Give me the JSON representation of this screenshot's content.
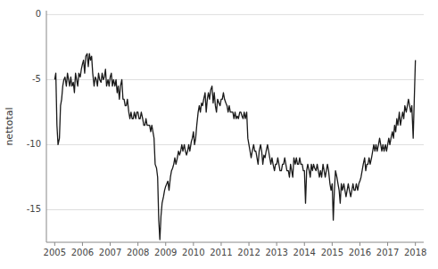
{
  "chart_data": {
    "type": "line",
    "ylabel": "nettotal",
    "color": "#1a1a1a",
    "grid": true,
    "xlim": [
      2004.7,
      2018.3
    ],
    "ylim": [
      -17.5,
      0.3
    ],
    "xticks": [
      2005,
      2006,
      2007,
      2008,
      2009,
      2010,
      2011,
      2012,
      2013,
      2014,
      2015,
      2016,
      2017,
      2018
    ],
    "yticks": [
      0,
      -5,
      -10,
      -15
    ],
    "x": [
      2005.0,
      2005.04,
      2005.08,
      2005.12,
      2005.17,
      2005.21,
      2005.25,
      2005.29,
      2005.33,
      2005.37,
      2005.42,
      2005.46,
      2005.5,
      2005.54,
      2005.58,
      2005.62,
      2005.67,
      2005.71,
      2005.75,
      2005.79,
      2005.83,
      2005.87,
      2005.92,
      2005.96,
      2006.0,
      2006.04,
      2006.08,
      2006.12,
      2006.17,
      2006.21,
      2006.25,
      2006.29,
      2006.33,
      2006.37,
      2006.42,
      2006.46,
      2006.5,
      2006.54,
      2006.58,
      2006.62,
      2006.67,
      2006.71,
      2006.75,
      2006.79,
      2006.83,
      2006.87,
      2006.92,
      2006.96,
      2007.0,
      2007.04,
      2007.08,
      2007.12,
      2007.17,
      2007.21,
      2007.25,
      2007.29,
      2007.33,
      2007.37,
      2007.42,
      2007.46,
      2007.5,
      2007.54,
      2007.58,
      2007.62,
      2007.67,
      2007.71,
      2007.75,
      2007.79,
      2007.83,
      2007.87,
      2007.92,
      2007.96,
      2008.0,
      2008.04,
      2008.08,
      2008.12,
      2008.17,
      2008.21,
      2008.25,
      2008.29,
      2008.33,
      2008.37,
      2008.42,
      2008.46,
      2008.5,
      2008.54,
      2008.58,
      2008.62,
      2008.67,
      2008.71,
      2008.75,
      2008.79,
      2008.83,
      2008.87,
      2008.92,
      2008.96,
      2009.0,
      2009.04,
      2009.08,
      2009.12,
      2009.17,
      2009.21,
      2009.25,
      2009.29,
      2009.33,
      2009.37,
      2009.42,
      2009.46,
      2009.5,
      2009.54,
      2009.58,
      2009.62,
      2009.67,
      2009.71,
      2009.75,
      2009.79,
      2009.83,
      2009.87,
      2009.92,
      2009.96,
      2010.0,
      2010.04,
      2010.08,
      2010.12,
      2010.17,
      2010.21,
      2010.25,
      2010.29,
      2010.33,
      2010.37,
      2010.42,
      2010.46,
      2010.5,
      2010.54,
      2010.58,
      2010.62,
      2010.67,
      2010.71,
      2010.75,
      2010.79,
      2010.83,
      2010.87,
      2010.92,
      2010.96,
      2011.0,
      2011.04,
      2011.08,
      2011.12,
      2011.17,
      2011.21,
      2011.25,
      2011.29,
      2011.33,
      2011.37,
      2011.42,
      2011.46,
      2011.5,
      2011.54,
      2011.58,
      2011.62,
      2011.67,
      2011.71,
      2011.75,
      2011.79,
      2011.83,
      2011.87,
      2011.92,
      2011.96,
      2012.0,
      2012.04,
      2012.08,
      2012.12,
      2012.17,
      2012.21,
      2012.25,
      2012.29,
      2012.33,
      2012.37,
      2012.42,
      2012.46,
      2012.5,
      2012.54,
      2012.58,
      2012.62,
      2012.67,
      2012.71,
      2012.75,
      2012.79,
      2012.83,
      2012.87,
      2012.92,
      2012.96,
      2013.0,
      2013.04,
      2013.08,
      2013.12,
      2013.17,
      2013.21,
      2013.25,
      2013.29,
      2013.33,
      2013.37,
      2013.42,
      2013.46,
      2013.5,
      2013.54,
      2013.58,
      2013.62,
      2013.67,
      2013.71,
      2013.75,
      2013.79,
      2013.83,
      2013.87,
      2013.92,
      2013.96,
      2014.0,
      2014.04,
      2014.08,
      2014.12,
      2014.17,
      2014.21,
      2014.25,
      2014.29,
      2014.33,
      2014.37,
      2014.42,
      2014.46,
      2014.5,
      2014.54,
      2014.58,
      2014.62,
      2014.67,
      2014.71,
      2014.75,
      2014.79,
      2014.83,
      2014.87,
      2014.92,
      2014.96,
      2015.0,
      2015.04,
      2015.08,
      2015.12,
      2015.17,
      2015.21,
      2015.25,
      2015.29,
      2015.33,
      2015.37,
      2015.42,
      2015.46,
      2015.5,
      2015.54,
      2015.58,
      2015.62,
      2015.67,
      2015.71,
      2015.75,
      2015.79,
      2015.83,
      2015.87,
      2015.92,
      2015.96,
      2016.0,
      2016.04,
      2016.08,
      2016.12,
      2016.17,
      2016.21,
      2016.25,
      2016.29,
      2016.33,
      2016.37,
      2016.42,
      2016.46,
      2016.5,
      2016.54,
      2016.58,
      2016.62,
      2016.67,
      2016.71,
      2016.75,
      2016.79,
      2016.83,
      2016.87,
      2016.92,
      2016.96,
      2017.0,
      2017.04,
      2017.08,
      2017.12,
      2017.17,
      2017.21,
      2017.25,
      2017.29,
      2017.33,
      2017.37,
      2017.42,
      2017.46,
      2017.5,
      2017.54,
      2017.58,
      2017.62,
      2017.67,
      2017.71,
      2017.75,
      2017.79,
      2017.83,
      2017.87,
      2017.92,
      2017.96,
      2018.0
    ],
    "values": [
      -5.0,
      -4.5,
      -8.5,
      -10.0,
      -9.5,
      -7.0,
      -6.5,
      -5.5,
      -5.0,
      -4.8,
      -5.5,
      -4.5,
      -5.0,
      -5.5,
      -4.8,
      -5.5,
      -5.2,
      -6.0,
      -4.5,
      -5.0,
      -5.5,
      -4.5,
      -4.8,
      -4.2,
      -3.8,
      -3.5,
      -4.5,
      -3.2,
      -3.0,
      -4.0,
      -3.0,
      -3.5,
      -3.2,
      -4.5,
      -5.5,
      -4.8,
      -5.0,
      -5.5,
      -4.5,
      -5.0,
      -5.2,
      -4.5,
      -5.0,
      -4.8,
      -4.2,
      -5.5,
      -5.0,
      -5.5,
      -4.8,
      -4.5,
      -5.5,
      -5.0,
      -5.5,
      -5.0,
      -6.0,
      -5.5,
      -6.5,
      -5.5,
      -5.0,
      -6.5,
      -6.5,
      -7.0,
      -7.0,
      -6.5,
      -7.5,
      -8.0,
      -7.5,
      -8.0,
      -8.0,
      -7.5,
      -8.0,
      -7.5,
      -7.5,
      -8.0,
      -8.0,
      -7.5,
      -8.0,
      -8.5,
      -8.5,
      -8.0,
      -8.5,
      -8.5,
      -8.5,
      -9.0,
      -8.5,
      -9.0,
      -9.5,
      -11.5,
      -11.8,
      -12.5,
      -15.8,
      -17.3,
      -15.5,
      -14.5,
      -14.0,
      -13.5,
      -13.2,
      -13.0,
      -12.8,
      -13.5,
      -12.5,
      -12.0,
      -11.8,
      -11.5,
      -11.0,
      -11.5,
      -11.0,
      -10.5,
      -10.8,
      -10.5,
      -10.0,
      -10.5,
      -10.0,
      -10.5,
      -10.8,
      -10.5,
      -10.0,
      -10.5,
      -9.8,
      -9.5,
      -9.0,
      -10.0,
      -9.5,
      -8.5,
      -7.5,
      -7.0,
      -7.5,
      -6.8,
      -7.0,
      -6.5,
      -6.0,
      -7.5,
      -6.5,
      -6.0,
      -6.5,
      -5.8,
      -5.5,
      -6.8,
      -6.0,
      -7.0,
      -7.5,
      -6.5,
      -6.8,
      -7.0,
      -6.5,
      -6.5,
      -6.0,
      -6.5,
      -6.8,
      -7.0,
      -7.5,
      -7.0,
      -7.5,
      -7.5,
      -7.5,
      -8.0,
      -7.5,
      -8.0,
      -7.8,
      -8.0,
      -7.5,
      -7.5,
      -7.8,
      -8.0,
      -7.5,
      -8.0,
      -7.5,
      -9.5,
      -10.0,
      -10.5,
      -11.0,
      -10.5,
      -10.0,
      -10.5,
      -10.5,
      -11.0,
      -11.5,
      -10.5,
      -10.0,
      -10.5,
      -11.5,
      -10.8,
      -11.0,
      -10.5,
      -10.0,
      -10.5,
      -11.0,
      -11.5,
      -11.0,
      -11.5,
      -12.0,
      -11.5,
      -11.5,
      -11.0,
      -11.5,
      -12.0,
      -12.0,
      -11.5,
      -11.5,
      -11.0,
      -11.5,
      -12.0,
      -12.0,
      -12.5,
      -11.5,
      -12.0,
      -12.5,
      -11.0,
      -11.5,
      -11.0,
      -11.5,
      -11.5,
      -11.0,
      -11.5,
      -11.5,
      -12.0,
      -12.0,
      -14.5,
      -12.0,
      -11.5,
      -12.0,
      -12.5,
      -11.5,
      -12.0,
      -11.5,
      -11.8,
      -12.0,
      -11.5,
      -12.0,
      -12.5,
      -12.0,
      -12.5,
      -11.5,
      -12.0,
      -12.5,
      -12.0,
      -11.5,
      -12.0,
      -13.0,
      -13.5,
      -13.0,
      -15.8,
      -13.5,
      -12.0,
      -12.5,
      -13.0,
      -13.5,
      -14.5,
      -13.0,
      -13.5,
      -13.0,
      -13.5,
      -14.0,
      -13.5,
      -13.0,
      -13.5,
      -14.0,
      -13.5,
      -13.0,
      -13.5,
      -13.5,
      -13.0,
      -13.5,
      -13.0,
      -12.8,
      -12.5,
      -12.0,
      -11.5,
      -11.0,
      -12.0,
      -11.5,
      -11.5,
      -11.0,
      -11.5,
      -11.0,
      -10.5,
      -10.0,
      -10.5,
      -10.0,
      -10.5,
      -10.0,
      -9.5,
      -10.0,
      -10.5,
      -10.0,
      -10.5,
      -10.0,
      -10.5,
      -10.0,
      -9.5,
      -10.0,
      -9.5,
      -9.0,
      -9.5,
      -8.5,
      -9.0,
      -8.0,
      -8.5,
      -7.5,
      -8.5,
      -8.0,
      -7.5,
      -8.0,
      -7.0,
      -7.5,
      -7.0,
      -6.5,
      -7.0,
      -7.5,
      -7.0,
      -9.5,
      -6.5,
      -3.5
    ]
  }
}
